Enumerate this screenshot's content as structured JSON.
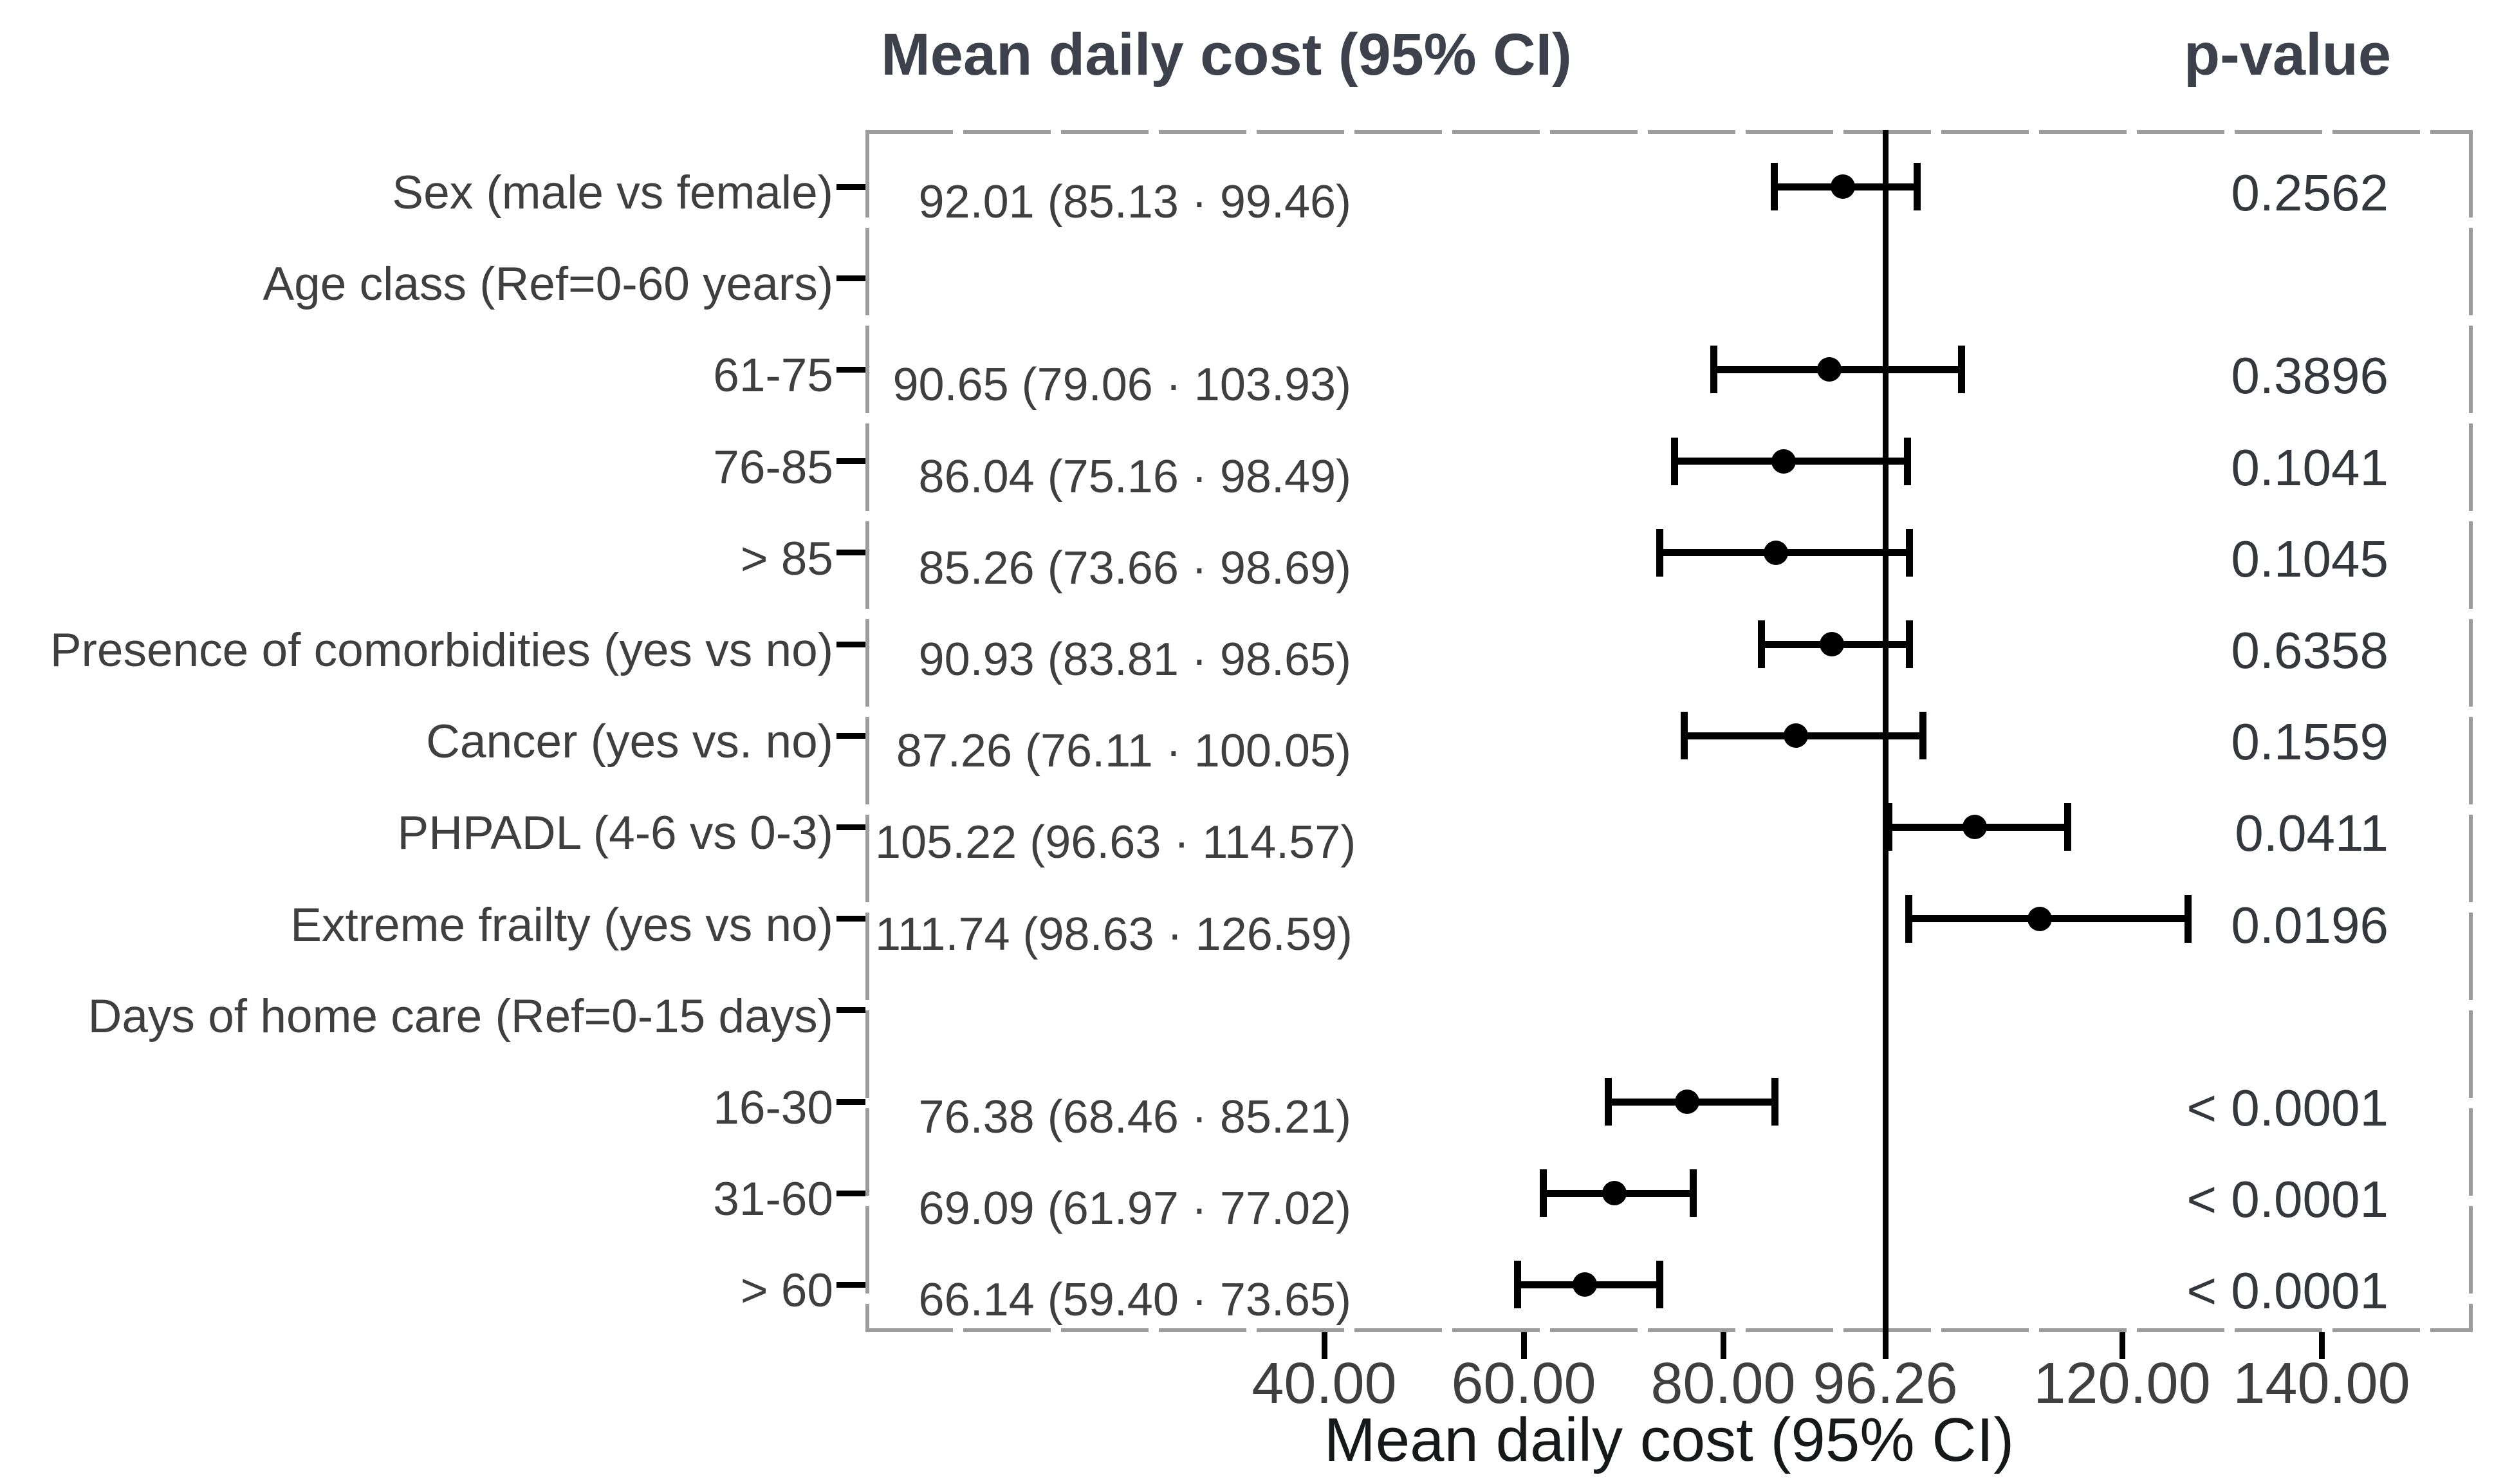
{
  "chart_data": {
    "type": "forest",
    "title": "Mean daily cost (95% CI)",
    "pvalue_header": "p-value",
    "xlabel": "Mean daily cost (95% CI)",
    "x_axis": {
      "ticks": [
        {
          "value": 40,
          "label": "40.00"
        },
        {
          "value": 60,
          "label": "60.00"
        },
        {
          "value": 80,
          "label": "80.00"
        },
        {
          "value": 96.26,
          "label": "96.26"
        },
        {
          "value": 120,
          "label": "120.00"
        },
        {
          "value": 140,
          "label": "140.00"
        }
      ],
      "reference_line": 96.26,
      "range": [
        -7,
        156
      ],
      "grid": "off"
    },
    "legend": "none",
    "rows": [
      {
        "label": "Sex (male vs female)",
        "mean": 92.01,
        "ci_low": 85.13,
        "ci_high": 99.46,
        "estimate_text": "92.01 (85.13 · 99.46)",
        "p_value": "0.2562"
      },
      {
        "label": "Age class (Ref=0-60 years)",
        "mean": null,
        "ci_low": null,
        "ci_high": null,
        "estimate_text": "",
        "p_value": ""
      },
      {
        "label": "61-75",
        "mean": 90.65,
        "ci_low": 79.06,
        "ci_high": 103.93,
        "estimate_text": "90.65 (79.06 · 103.93)",
        "p_value": "0.3896"
      },
      {
        "label": "76-85",
        "mean": 86.04,
        "ci_low": 75.16,
        "ci_high": 98.49,
        "estimate_text": "86.04 (75.16 · 98.49)",
        "p_value": "0.1041"
      },
      {
        "label": "> 85",
        "mean": 85.26,
        "ci_low": 73.66,
        "ci_high": 98.69,
        "estimate_text": "85.26 (73.66 · 98.69)",
        "p_value": "0.1045"
      },
      {
        "label": "Presence of comorbidities (yes vs no)",
        "mean": 90.93,
        "ci_low": 83.81,
        "ci_high": 98.65,
        "estimate_text": "90.93 (83.81 · 98.65)",
        "p_value": "0.6358"
      },
      {
        "label": "Cancer (yes vs. no)",
        "mean": 87.26,
        "ci_low": 76.11,
        "ci_high": 100.05,
        "estimate_text": "87.26 (76.11 · 100.05)",
        "p_value": "0.1559"
      },
      {
        "label": "PHPADL (4-6 vs 0-3)",
        "mean": 105.22,
        "ci_low": 96.63,
        "ci_high": 114.57,
        "estimate_text": "105.22 (96.63 · 114.57)",
        "p_value": "0.0411"
      },
      {
        "label": "Extreme frailty (yes vs no)",
        "mean": 111.74,
        "ci_low": 98.63,
        "ci_high": 126.59,
        "estimate_text": "111.74 (98.63 · 126.59)",
        "p_value": "0.0196"
      },
      {
        "label": "Days of home care (Ref=0-15 days)",
        "mean": null,
        "ci_low": null,
        "ci_high": null,
        "estimate_text": "",
        "p_value": ""
      },
      {
        "label": "16-30",
        "mean": 76.38,
        "ci_low": 68.46,
        "ci_high": 85.21,
        "estimate_text": "76.38 (68.46 · 85.21)",
        "p_value": "< 0.0001"
      },
      {
        "label": "31-60",
        "mean": 69.09,
        "ci_low": 61.97,
        "ci_high": 77.02,
        "estimate_text": "69.09 (61.97 · 77.02)",
        "p_value": "< 0.0001"
      },
      {
        "label": "> 60",
        "mean": 66.14,
        "ci_low": 59.4,
        "ci_high": 73.65,
        "estimate_text": "66.14 (59.40 · 73.65)",
        "p_value": "< 0.0001"
      }
    ]
  }
}
